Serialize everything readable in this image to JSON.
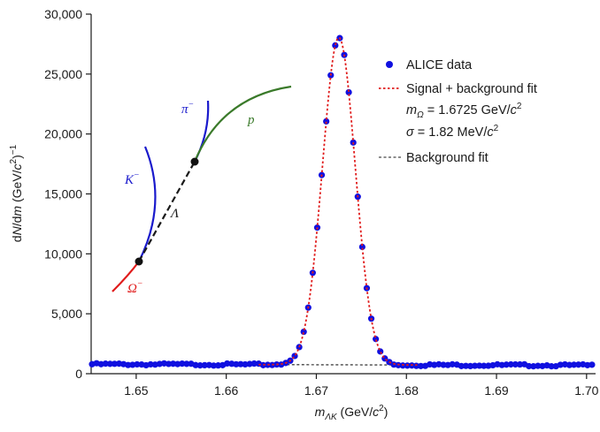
{
  "chart_data": {
    "type": "scatter",
    "title": "",
    "xlabel": {
      "main": "m",
      "sub": "ΛK",
      "unit_pre": " (GeV/",
      "unit_var": "c",
      "unit_sup": "2",
      "unit_post": ")"
    },
    "ylabel": {
      "pre": "d",
      "n": "N",
      "mid": "/d",
      "m": "m",
      "unit_pre": " (GeV/",
      "unit_var": "c",
      "unit_sup": "2",
      "unit_post": ")",
      "exp": "−1"
    },
    "xlim": [
      1.645,
      1.701
    ],
    "ylim": [
      0,
      30000
    ],
    "x_ticks": [
      1.65,
      1.66,
      1.67,
      1.68,
      1.69,
      1.7
    ],
    "x_tick_labels": [
      "1.65",
      "1.66",
      "1.67",
      "1.68",
      "1.69",
      "1.70"
    ],
    "y_ticks": [
      0,
      5000,
      10000,
      15000,
      20000,
      25000,
      30000
    ],
    "y_tick_labels": [
      "0",
      "5,000",
      "10,000",
      "15,000",
      "20,000",
      "25,000",
      "30,000"
    ],
    "grid": false,
    "legend_position": "top-right",
    "peak": {
      "mean": 1.6725,
      "sigma": 0.00182,
      "amplitude": 27300
    },
    "background": {
      "level_at_1645": 790,
      "level_at_1701": 690
    },
    "series": [
      {
        "name": "ALICE data",
        "kind": "points",
        "color": "#1010e0",
        "x_start": 1.6451,
        "x_step": 0.0005,
        "count": 112
      },
      {
        "name": "Signal + background fit",
        "kind": "line",
        "style": "dotted",
        "color": "#e01b1b"
      },
      {
        "name": "Background fit",
        "kind": "line",
        "style": "dashed",
        "color": "#1a1a1a"
      }
    ],
    "legend": {
      "data": "ALICE data",
      "fit": "Signal + background fit",
      "mass_sym": "m",
      "mass_sub": "Ω",
      "mass_val": " = 1.6725 GeV/",
      "mass_c": "c",
      "mass_sup": "2",
      "sigma_sym": "σ",
      "sigma_val": " = 1.82 MeV/",
      "sigma_c": "c",
      "sigma_sup": "2",
      "bkg": "Background fit"
    },
    "inset": {
      "omega": {
        "text": "Ω",
        "sup": "−",
        "color": "#e01b1b"
      },
      "kaon": {
        "text": "K",
        "sup": "−",
        "color": "#1a1acc"
      },
      "pion": {
        "text": "π",
        "sup": "−",
        "color": "#1a1acc"
      },
      "proton": {
        "text": "p",
        "color": "#3a7a2a"
      },
      "lambda": {
        "text": "Λ",
        "color": "#1a1a1a"
      }
    }
  }
}
